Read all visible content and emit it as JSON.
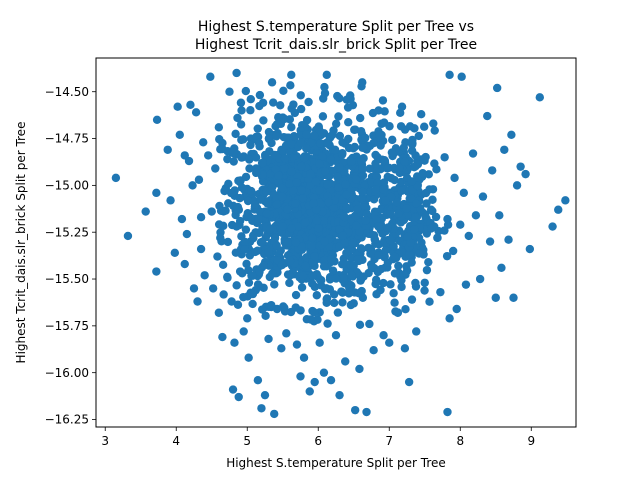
{
  "chart_data": {
    "type": "scatter",
    "title_lines": [
      "Highest S.temperature Split per Tree vs",
      "Highest Tcrit_dais.slr_brick Split per Tree"
    ],
    "xlabel": "Highest S.temperature Split per Tree",
    "ylabel": "Highest Tcrit_dais.slr_brick Split per Tree",
    "xlim": [
      2.87,
      9.63
    ],
    "ylim": [
      -16.29,
      -14.32
    ],
    "x_ticks": [
      3,
      4,
      5,
      6,
      7,
      8,
      9
    ],
    "y_ticks": [
      -16.25,
      -16.0,
      -15.75,
      -15.5,
      -15.25,
      -15.0,
      -14.75,
      -14.5
    ],
    "y_tick_labels": [
      "−16.25",
      "−16.00",
      "−15.75",
      "−15.50",
      "−15.25",
      "−15.00",
      "−14.75",
      "−14.50"
    ],
    "x_tick_labels": [
      "3",
      "4",
      "5",
      "6",
      "7",
      "8",
      "9"
    ],
    "point_color": "#1f77b4",
    "grid": false,
    "legend": "none",
    "points": [
      [
        3.15,
        -14.96
      ],
      [
        3.32,
        -15.27
      ],
      [
        3.57,
        -15.14
      ],
      [
        3.72,
        -15.46
      ],
      [
        3.72,
        -15.04
      ],
      [
        3.73,
        -14.65
      ],
      [
        3.88,
        -14.81
      ],
      [
        3.92,
        -15.08
      ],
      [
        3.98,
        -15.36
      ],
      [
        4.02,
        -14.58
      ],
      [
        4.05,
        -14.73
      ],
      [
        4.08,
        -15.18
      ],
      [
        4.12,
        -14.84
      ],
      [
        4.12,
        -15.42
      ],
      [
        4.15,
        -15.26
      ],
      [
        4.18,
        -14.87
      ],
      [
        4.2,
        -14.57
      ],
      [
        4.23,
        -15.0
      ],
      [
        4.25,
        -15.55
      ],
      [
        4.28,
        -14.61
      ],
      [
        4.3,
        -15.62
      ],
      [
        4.32,
        -14.97
      ],
      [
        4.35,
        -15.17
      ],
      [
        4.35,
        -15.34
      ],
      [
        4.38,
        -14.77
      ],
      [
        4.4,
        -15.48
      ],
      [
        4.45,
        -14.84
      ],
      [
        4.48,
        -14.42
      ],
      [
        4.5,
        -15.14
      ],
      [
        4.52,
        -15.55
      ],
      [
        4.55,
        -14.91
      ],
      [
        4.58,
        -15.38
      ],
      [
        4.6,
        -14.69
      ],
      [
        4.6,
        -15.68
      ],
      [
        4.62,
        -15.28
      ],
      [
        4.65,
        -15.81
      ],
      [
        4.68,
        -15.03
      ],
      [
        4.72,
        -14.86
      ],
      [
        4.75,
        -14.5
      ],
      [
        4.78,
        -15.62
      ],
      [
        4.8,
        -16.09
      ],
      [
        4.82,
        -15.84
      ],
      [
        4.85,
        -14.4
      ],
      [
        4.85,
        -15.22
      ],
      [
        4.88,
        -16.13
      ],
      [
        4.9,
        -15.46
      ],
      [
        4.92,
        -14.6
      ],
      [
        4.95,
        -15.78
      ],
      [
        5.0,
        -15.71
      ],
      [
        5.02,
        -15.92
      ],
      [
        5.05,
        -14.54
      ],
      [
        5.08,
        -15.58
      ],
      [
        5.15,
        -16.04
      ],
      [
        5.2,
        -16.19
      ],
      [
        5.25,
        -16.12
      ],
      [
        5.3,
        -15.82
      ],
      [
        5.35,
        -14.45
      ],
      [
        5.38,
        -16.22
      ],
      [
        5.42,
        -15.66
      ],
      [
        5.48,
        -15.87
      ],
      [
        5.55,
        -15.79
      ],
      [
        5.62,
        -14.41
      ],
      [
        5.7,
        -15.85
      ],
      [
        5.75,
        -16.02
      ],
      [
        5.8,
        -15.92
      ],
      [
        5.88,
        -16.1
      ],
      [
        5.95,
        -16.05
      ],
      [
        6.02,
        -15.84
      ],
      [
        6.08,
        -16.0
      ],
      [
        6.12,
        -14.41
      ],
      [
        6.18,
        -16.04
      ],
      [
        6.25,
        -15.8
      ],
      [
        6.3,
        -16.12
      ],
      [
        6.38,
        -15.94
      ],
      [
        6.45,
        -14.52
      ],
      [
        6.5,
        -15.63
      ],
      [
        6.52,
        -16.2
      ],
      [
        6.58,
        -15.98
      ],
      [
        6.62,
        -14.45
      ],
      [
        6.68,
        -16.21
      ],
      [
        6.72,
        -15.74
      ],
      [
        6.78,
        -15.88
      ],
      [
        6.85,
        -14.6
      ],
      [
        6.92,
        -15.8
      ],
      [
        7.0,
        -15.84
      ],
      [
        7.08,
        -15.47
      ],
      [
        7.12,
        -15.68
      ],
      [
        7.18,
        -14.58
      ],
      [
        7.22,
        -15.87
      ],
      [
        7.28,
        -16.05
      ],
      [
        7.32,
        -15.61
      ],
      [
        7.38,
        -15.78
      ],
      [
        7.45,
        -14.62
      ],
      [
        7.5,
        -15.52
      ],
      [
        7.55,
        -15.41
      ],
      [
        7.62,
        -14.67
      ],
      [
        7.68,
        -15.28
      ],
      [
        7.72,
        -15.57
      ],
      [
        7.78,
        -14.85
      ],
      [
        7.82,
        -15.18
      ],
      [
        7.82,
        -16.21
      ],
      [
        7.85,
        -14.41
      ],
      [
        7.85,
        -15.71
      ],
      [
        7.9,
        -15.35
      ],
      [
        7.92,
        -14.96
      ],
      [
        7.95,
        -15.66
      ],
      [
        8.0,
        -15.21
      ],
      [
        8.02,
        -14.42
      ],
      [
        8.05,
        -15.04
      ],
      [
        8.08,
        -15.53
      ],
      [
        8.12,
        -15.27
      ],
      [
        8.18,
        -14.83
      ],
      [
        8.22,
        -15.16
      ],
      [
        8.28,
        -15.5
      ],
      [
        8.32,
        -15.06
      ],
      [
        8.38,
        -14.63
      ],
      [
        8.42,
        -15.3
      ],
      [
        8.45,
        -14.92
      ],
      [
        8.5,
        -15.6
      ],
      [
        8.52,
        -14.48
      ],
      [
        8.55,
        -15.16
      ],
      [
        8.58,
        -15.44
      ],
      [
        8.62,
        -14.81
      ],
      [
        8.68,
        -15.29
      ],
      [
        8.72,
        -14.73
      ],
      [
        8.75,
        -15.6
      ],
      [
        8.8,
        -15.0
      ],
      [
        8.85,
        -14.9
      ],
      [
        8.92,
        -14.94
      ],
      [
        8.98,
        -15.34
      ],
      [
        9.12,
        -14.53
      ],
      [
        9.3,
        -15.22
      ],
      [
        9.38,
        -15.13
      ],
      [
        9.48,
        -15.08
      ]
    ]
  }
}
